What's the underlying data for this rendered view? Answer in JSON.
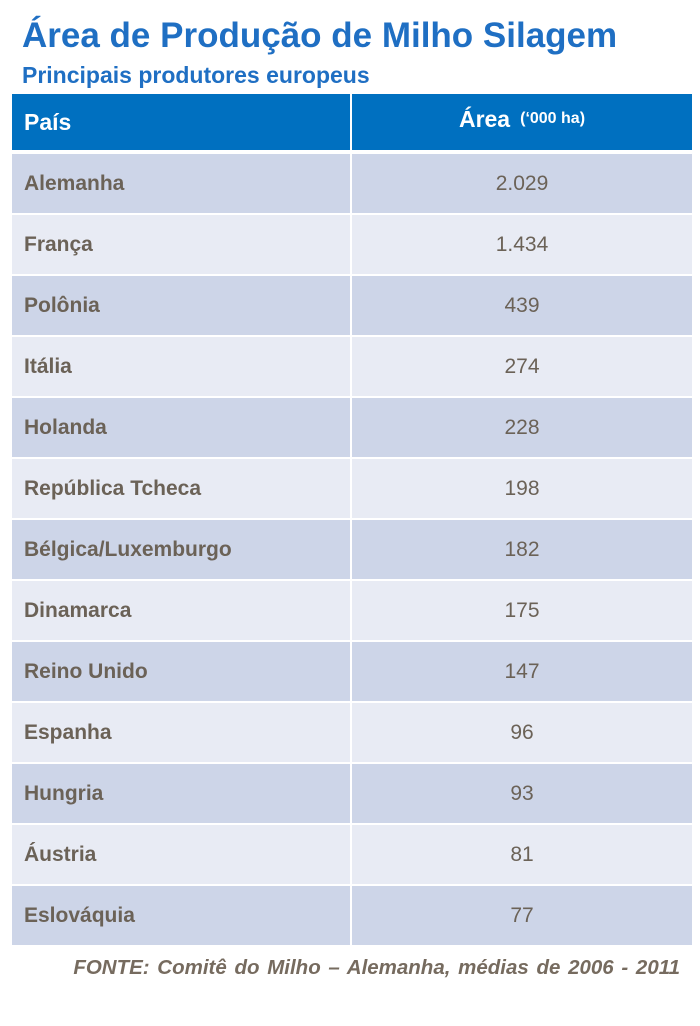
{
  "title": "Área de Produção de Milho Silagem",
  "subtitle": "Principais produtores europeus",
  "table": {
    "header": {
      "col1": "País",
      "col2": "Área",
      "col2_unit": "(‘000 ha)"
    }
  },
  "source": "FONTE: Comitê do Milho – Alemanha, médias de 2006 - 2011",
  "chart_data": {
    "type": "table",
    "title": "Área de Produção de Milho Silagem",
    "subtitle": "Principais produtores europeus",
    "columns": [
      "País",
      "Área (‘000 ha)"
    ],
    "rows": [
      {
        "country": "Alemanha",
        "area": "2.029"
      },
      {
        "country": "França",
        "area": "1.434"
      },
      {
        "country": "Polônia",
        "area": "439"
      },
      {
        "country": "Itália",
        "area": "274"
      },
      {
        "country": "Holanda",
        "area": "228"
      },
      {
        "country": "República Tcheca",
        "area": "198"
      },
      {
        "country": "Bélgica/Luxemburgo",
        "area": "182"
      },
      {
        "country": "Dinamarca",
        "area": "175"
      },
      {
        "country": "Reino Unido",
        "area": "147"
      },
      {
        "country": "Espanha",
        "area": "96"
      },
      {
        "country": "Hungria",
        "area": "93"
      },
      {
        "country": "Áustria",
        "area": "81"
      },
      {
        "country": "Eslováquia",
        "area": "77"
      }
    ]
  }
}
